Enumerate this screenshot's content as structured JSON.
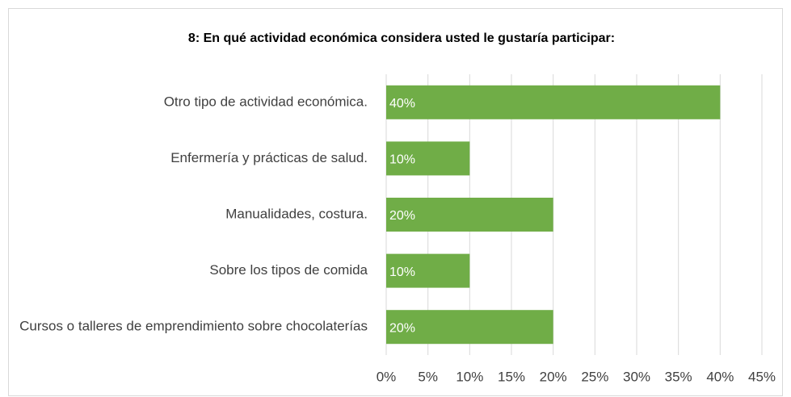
{
  "chart_data": {
    "type": "bar",
    "orientation": "horizontal",
    "title": "8: En qué actividad económica considera usted le gustaría participar:",
    "categories": [
      "Otro tipo de actividad económica.",
      "Enfermería y prácticas de salud.",
      "Manualidades, costura.",
      "Sobre los tipos de comida",
      "Cursos o talleres de emprendimiento sobre chocolaterías"
    ],
    "values": [
      40,
      10,
      20,
      10,
      20
    ],
    "value_labels": [
      "40%",
      "10%",
      "20%",
      "10%",
      "20%"
    ],
    "color": "#70ad47",
    "xlim": [
      0,
      45
    ],
    "xticks": [
      {
        "value": 0,
        "label": "0%"
      },
      {
        "value": 5,
        "label": "5%"
      },
      {
        "value": 10,
        "label": "10%"
      },
      {
        "value": 15,
        "label": "15%"
      },
      {
        "value": 20,
        "label": "20%"
      },
      {
        "value": 25,
        "label": "25%"
      },
      {
        "value": 30,
        "label": "30%"
      },
      {
        "value": 35,
        "label": "35%"
      },
      {
        "value": 40,
        "label": "40%"
      },
      {
        "value": 45,
        "label": "45%"
      }
    ],
    "grid": true
  }
}
